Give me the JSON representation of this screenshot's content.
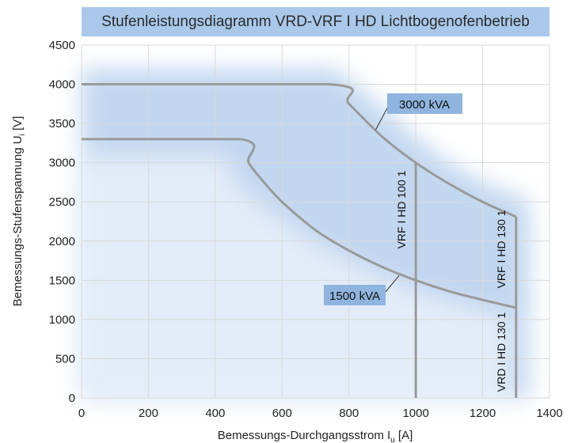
{
  "chart_data": {
    "type": "line",
    "title": "Stufenleistungsdiagramm VRD-VRF I HD Lichtbogenofenbetrieb",
    "xlabel": {
      "main": "Bemessungs-Durchgangsstrom I",
      "sub": "u",
      "unit": " [A]"
    },
    "ylabel": {
      "main": "Bemessungs-Stufenspannung U",
      "sub": "i",
      "unit": " [V]"
    },
    "xlim": [
      0,
      1400
    ],
    "ylim": [
      0,
      4500
    ],
    "xticks": [
      0,
      200,
      400,
      600,
      800,
      1000,
      1200,
      1400
    ],
    "yticks": [
      0,
      500,
      1000,
      1500,
      2000,
      2500,
      3000,
      3500,
      4000,
      4500
    ],
    "grid": true,
    "series": [
      {
        "name": "3000 kVA",
        "points": [
          [
            0,
            4000
          ],
          [
            740,
            4000
          ],
          [
            800,
            3750
          ],
          [
            900,
            3330
          ],
          [
            1000,
            3000
          ],
          [
            1100,
            2730
          ],
          [
            1200,
            2500
          ],
          [
            1300,
            2310
          ]
        ]
      },
      {
        "name": "1500 kVA",
        "points": [
          [
            0,
            3300
          ],
          [
            475,
            3300
          ],
          [
            500,
            3000
          ],
          [
            550,
            2730
          ],
          [
            600,
            2500
          ],
          [
            700,
            2140
          ],
          [
            800,
            1880
          ],
          [
            900,
            1670
          ],
          [
            1000,
            1500
          ],
          [
            1100,
            1360
          ],
          [
            1200,
            1250
          ],
          [
            1300,
            1150
          ]
        ]
      }
    ],
    "vertical_lines": [
      {
        "x": 1000,
        "y_from": 0,
        "y_to": 3000
      },
      {
        "x": 1300,
        "y_from": 0,
        "y_to": 2310
      }
    ],
    "annotations": [
      {
        "text": "3000 kVA",
        "target": [
          880,
          3420
        ]
      },
      {
        "text": "1500 kVA",
        "target": [
          950,
          1560
        ]
      },
      {
        "text": "VRF I HD 100 1"
      },
      {
        "text": "VRF I HD 130 1"
      },
      {
        "text": "VRD I HD 130 1"
      }
    ],
    "colors": {
      "line": "#9a9a9a",
      "glow": "#b8d0ee",
      "title_bg": "#a9c8ea",
      "callout_bg": "#8fb5df",
      "grid": "#d9d9d9"
    }
  }
}
